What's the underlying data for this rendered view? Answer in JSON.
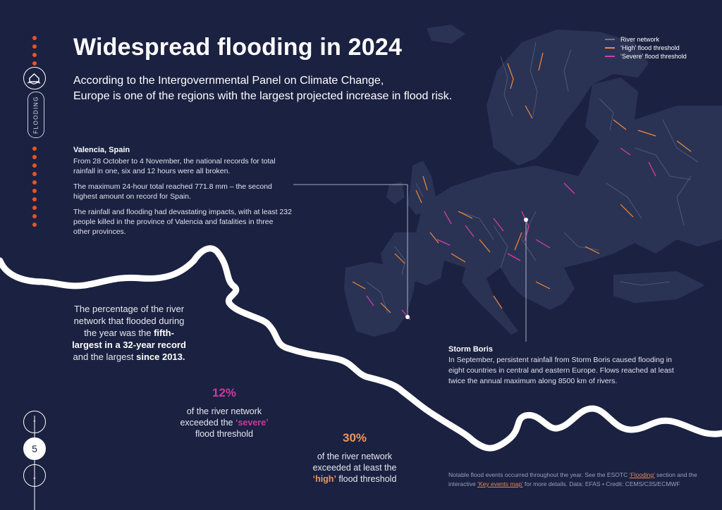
{
  "header": {
    "title": "Widespread flooding in 2024",
    "subtitle_line1": "According to the Intergovernmental Panel on Climate Change,",
    "subtitle_line2": "Europe is one of the regions with the largest projected increase in flood risk."
  },
  "legend": {
    "items": [
      {
        "label": "River network",
        "color": "#6b7592"
      },
      {
        "label": "‘High’ flood threshold",
        "color": "#f28a3c"
      },
      {
        "label": "‘Severe’ flood threshold",
        "color": "#d63aa8"
      }
    ]
  },
  "sidebar": {
    "section_label": "FLOODING",
    "page_number": "5",
    "up_arrow": "↑",
    "down_arrow": "↓"
  },
  "valencia": {
    "heading": "Valencia, Spain",
    "p1": "From 28 October to 4 November, the national records for total rainfall in one, six and 12 hours were all broken.",
    "p2": "The maximum 24-hour total reached 771.8 mm – the second highest amount on record for Spain.",
    "p3": "The rainfall and flooding had devastating impacts, with at least 232 people killed in the province of Valencia and fatalities in three other provinces."
  },
  "storm_boris": {
    "heading": "Storm Boris",
    "body": "In September, persistent rainfall from Storm Boris caused flooding in eight countries in central and eastern Europe. Flows reached at least twice the annual maximum along 8500 km of rivers."
  },
  "percentage_note": {
    "t1": "The percentage of the river network that flooded during the year was the ",
    "b1": "fifth-largest in a 32-year record",
    "t2": " and the largest ",
    "b2": "since 2013."
  },
  "stats": {
    "severe": {
      "value": "12%",
      "text1": "of the river network exceeded the ",
      "highlight": "‘severe’",
      "text2": "flood threshold",
      "color": "#c93a9e"
    },
    "high": {
      "value": "30%",
      "text1": "of the river network exceeded at least the",
      "highlight": "‘high’",
      "text2": " flood threshold",
      "color": "#f0955a"
    }
  },
  "footnote": {
    "t1": "Notable flood events occurred throughout the year. See the ESOTC ",
    "link1": "‘Flooding’",
    "t2": " section and the interactive ",
    "link2": "‘Key events map’",
    "t3": " for more details. Data: EFAS • Credit: CEMS/C3S/ECMWF"
  },
  "colors": {
    "background": "#1b2140",
    "accent_dots": "#e8542a",
    "land": "#2b3354",
    "river": "#6b7592",
    "high": "#f28a3c",
    "severe": "#d63aa8"
  }
}
